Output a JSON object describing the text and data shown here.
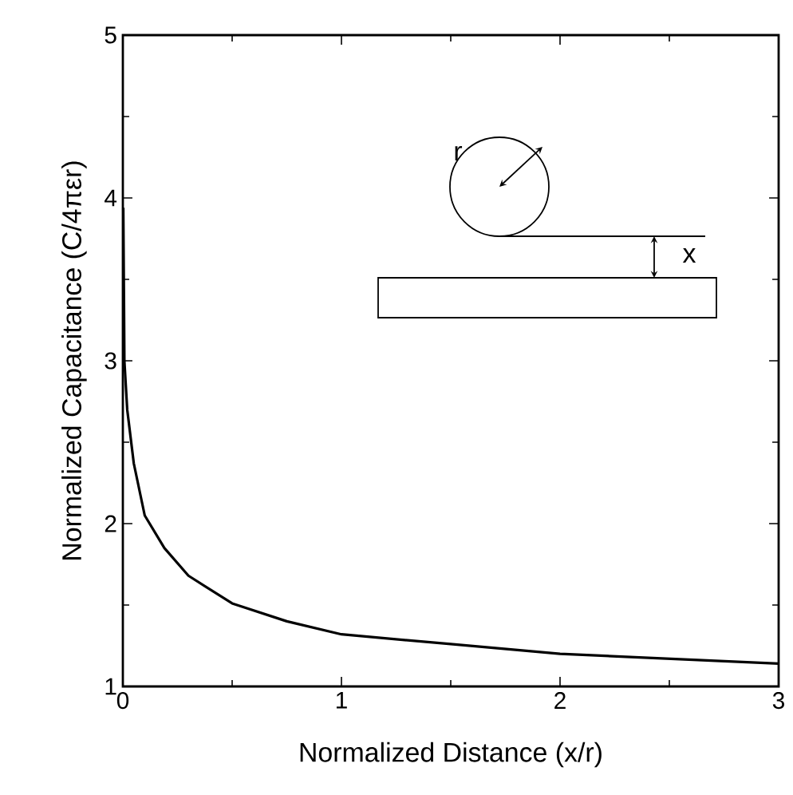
{
  "chart_data": {
    "type": "line",
    "xlabel": "Normalized Distance (x/r)",
    "ylabel": "Normalized Capacitance (C/4πεr)",
    "annotations": [
      "r",
      "x"
    ],
    "x": [
      0.002,
      0.005,
      0.007,
      0.02,
      0.05,
      0.1,
      0.19,
      0.3,
      0.5,
      0.75,
      1,
      1.5,
      2,
      2.5,
      3
    ],
    "series": [
      {
        "color": "#000000",
        "values": [
          3.94,
          3.4,
          3.0,
          2.7,
          2.37,
          2.05,
          1.85,
          1.68,
          1.51,
          1.4,
          1.32,
          1.26,
          1.2,
          1.17,
          1.14
        ]
      }
    ],
    "xlim": [
      0,
      3
    ],
    "ylim": [
      1,
      5
    ],
    "xticks": [
      0,
      1,
      2,
      3
    ],
    "yticks": [
      1,
      2,
      3,
      4,
      5
    ],
    "grid": false,
    "marker": "none",
    "line_style": "solid"
  }
}
